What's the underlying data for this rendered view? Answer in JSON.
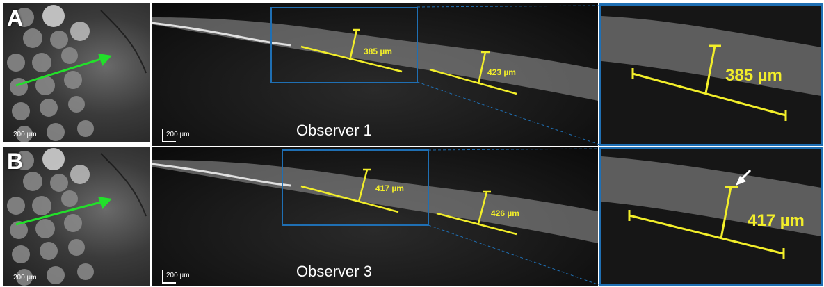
{
  "rows": [
    {
      "letter": "A",
      "observer": "Observer 1",
      "fundus_scale": "200 µm",
      "oct_scale": "200 µm",
      "measurement_1": "385 µm",
      "measurement_2": "423 µm",
      "zoom_measurement": "385 µm"
    },
    {
      "letter": "B",
      "observer": "Observer 3",
      "fundus_scale": "200 µm",
      "oct_scale": "200 µm",
      "measurement_1": "417 µm",
      "measurement_2": "426 µm",
      "zoom_measurement": "417 µm"
    }
  ],
  "colors": {
    "measure": "#f2ee2a",
    "scan_arrow": "#22e02a",
    "box": "#1f6fb3"
  }
}
